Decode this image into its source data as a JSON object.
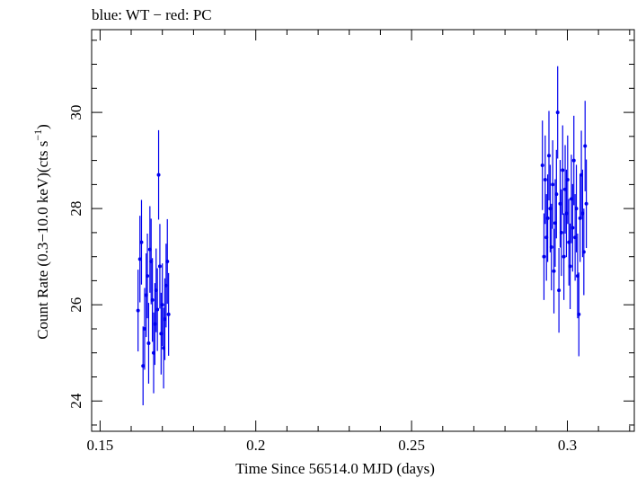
{
  "chart_data": {
    "type": "scatter",
    "title": "blue: WT − red: PC",
    "xlabel": "Time Since 56514.0 MJD (days)",
    "ylabel_parts": {
      "main": "Count Rate (0.3−10.0 keV)(cts s",
      "sup": "−1",
      "close": ")"
    },
    "xlim": [
      0.1473,
      0.3215
    ],
    "ylim": [
      23.37,
      31.72
    ],
    "x_ticks": [
      0.15,
      0.2,
      0.25,
      0.3
    ],
    "x_tick_labels": [
      "0.15",
      "0.2",
      "0.25",
      "0.3"
    ],
    "y_ticks": [
      24,
      26,
      28,
      30
    ],
    "y_tick_labels": [
      "24",
      "26",
      "28",
      "30"
    ],
    "series": [
      {
        "name": "WT",
        "color": "#0000ee",
        "points": [
          {
            "x": 0.1622,
            "y": 25.88,
            "err": 0.85
          },
          {
            "x": 0.1628,
            "y": 26.95,
            "err": 0.9
          },
          {
            "x": 0.1633,
            "y": 27.3,
            "err": 0.88
          },
          {
            "x": 0.1638,
            "y": 24.73,
            "err": 0.82
          },
          {
            "x": 0.1643,
            "y": 25.5,
            "err": 0.85
          },
          {
            "x": 0.1648,
            "y": 26.2,
            "err": 0.87
          },
          {
            "x": 0.1652,
            "y": 26.6,
            "err": 0.88
          },
          {
            "x": 0.1656,
            "y": 25.2,
            "err": 0.84
          },
          {
            "x": 0.166,
            "y": 27.15,
            "err": 0.9
          },
          {
            "x": 0.1664,
            "y": 26.9,
            "err": 0.89
          },
          {
            "x": 0.1668,
            "y": 26.1,
            "err": 0.87
          },
          {
            "x": 0.1672,
            "y": 25.0,
            "err": 0.84
          },
          {
            "x": 0.1676,
            "y": 25.6,
            "err": 0.85
          },
          {
            "x": 0.168,
            "y": 26.3,
            "err": 0.87
          },
          {
            "x": 0.1684,
            "y": 25.9,
            "err": 0.86
          },
          {
            "x": 0.1688,
            "y": 28.7,
            "err": 0.93
          },
          {
            "x": 0.1692,
            "y": 26.8,
            "err": 0.88
          },
          {
            "x": 0.1696,
            "y": 25.4,
            "err": 0.85
          },
          {
            "x": 0.17,
            "y": 26.0,
            "err": 0.86
          },
          {
            "x": 0.1704,
            "y": 25.1,
            "err": 0.84
          },
          {
            "x": 0.1708,
            "y": 25.7,
            "err": 0.85
          },
          {
            "x": 0.1712,
            "y": 26.4,
            "err": 0.87
          },
          {
            "x": 0.1716,
            "y": 26.9,
            "err": 0.88
          },
          {
            "x": 0.172,
            "y": 25.8,
            "err": 0.86
          }
        ]
      },
      {
        "name": "WT",
        "color": "#0000ee",
        "points": [
          {
            "x": 0.292,
            "y": 28.9,
            "err": 0.93
          },
          {
            "x": 0.2925,
            "y": 27.0,
            "err": 0.9
          },
          {
            "x": 0.2929,
            "y": 28.6,
            "err": 0.92
          },
          {
            "x": 0.2933,
            "y": 27.4,
            "err": 0.9
          },
          {
            "x": 0.2937,
            "y": 27.8,
            "err": 0.91
          },
          {
            "x": 0.2941,
            "y": 29.1,
            "err": 0.93
          },
          {
            "x": 0.2945,
            "y": 28.0,
            "err": 0.91
          },
          {
            "x": 0.2949,
            "y": 27.2,
            "err": 0.9
          },
          {
            "x": 0.2953,
            "y": 28.5,
            "err": 0.92
          },
          {
            "x": 0.2957,
            "y": 26.7,
            "err": 0.88
          },
          {
            "x": 0.2961,
            "y": 27.7,
            "err": 0.91
          },
          {
            "x": 0.2965,
            "y": 28.3,
            "err": 0.92
          },
          {
            "x": 0.2969,
            "y": 30.0,
            "err": 0.96
          },
          {
            "x": 0.2973,
            "y": 26.3,
            "err": 0.88
          },
          {
            "x": 0.2977,
            "y": 28.1,
            "err": 0.91
          },
          {
            "x": 0.2981,
            "y": 27.5,
            "err": 0.9
          },
          {
            "x": 0.2985,
            "y": 28.8,
            "err": 0.93
          },
          {
            "x": 0.2989,
            "y": 27.0,
            "err": 0.9
          },
          {
            "x": 0.2993,
            "y": 28.4,
            "err": 0.92
          },
          {
            "x": 0.2997,
            "y": 27.9,
            "err": 0.91
          },
          {
            "x": 0.3001,
            "y": 28.6,
            "err": 0.92
          },
          {
            "x": 0.3005,
            "y": 27.3,
            "err": 0.9
          },
          {
            "x": 0.3009,
            "y": 26.8,
            "err": 0.89
          },
          {
            "x": 0.3013,
            "y": 28.2,
            "err": 0.92
          },
          {
            "x": 0.3017,
            "y": 27.6,
            "err": 0.91
          },
          {
            "x": 0.3021,
            "y": 29.0,
            "err": 0.93
          },
          {
            "x": 0.3025,
            "y": 27.4,
            "err": 0.9
          },
          {
            "x": 0.3029,
            "y": 28.0,
            "err": 0.91
          },
          {
            "x": 0.3033,
            "y": 26.6,
            "err": 0.88
          },
          {
            "x": 0.3037,
            "y": 25.8,
            "err": 0.87
          },
          {
            "x": 0.3041,
            "y": 27.8,
            "err": 0.91
          },
          {
            "x": 0.3045,
            "y": 28.7,
            "err": 0.92
          },
          {
            "x": 0.3049,
            "y": 27.9,
            "err": 0.91
          },
          {
            "x": 0.3053,
            "y": 27.1,
            "err": 0.9
          },
          {
            "x": 0.3057,
            "y": 29.3,
            "err": 0.94
          },
          {
            "x": 0.3061,
            "y": 28.1,
            "err": 0.92
          }
        ]
      }
    ]
  }
}
